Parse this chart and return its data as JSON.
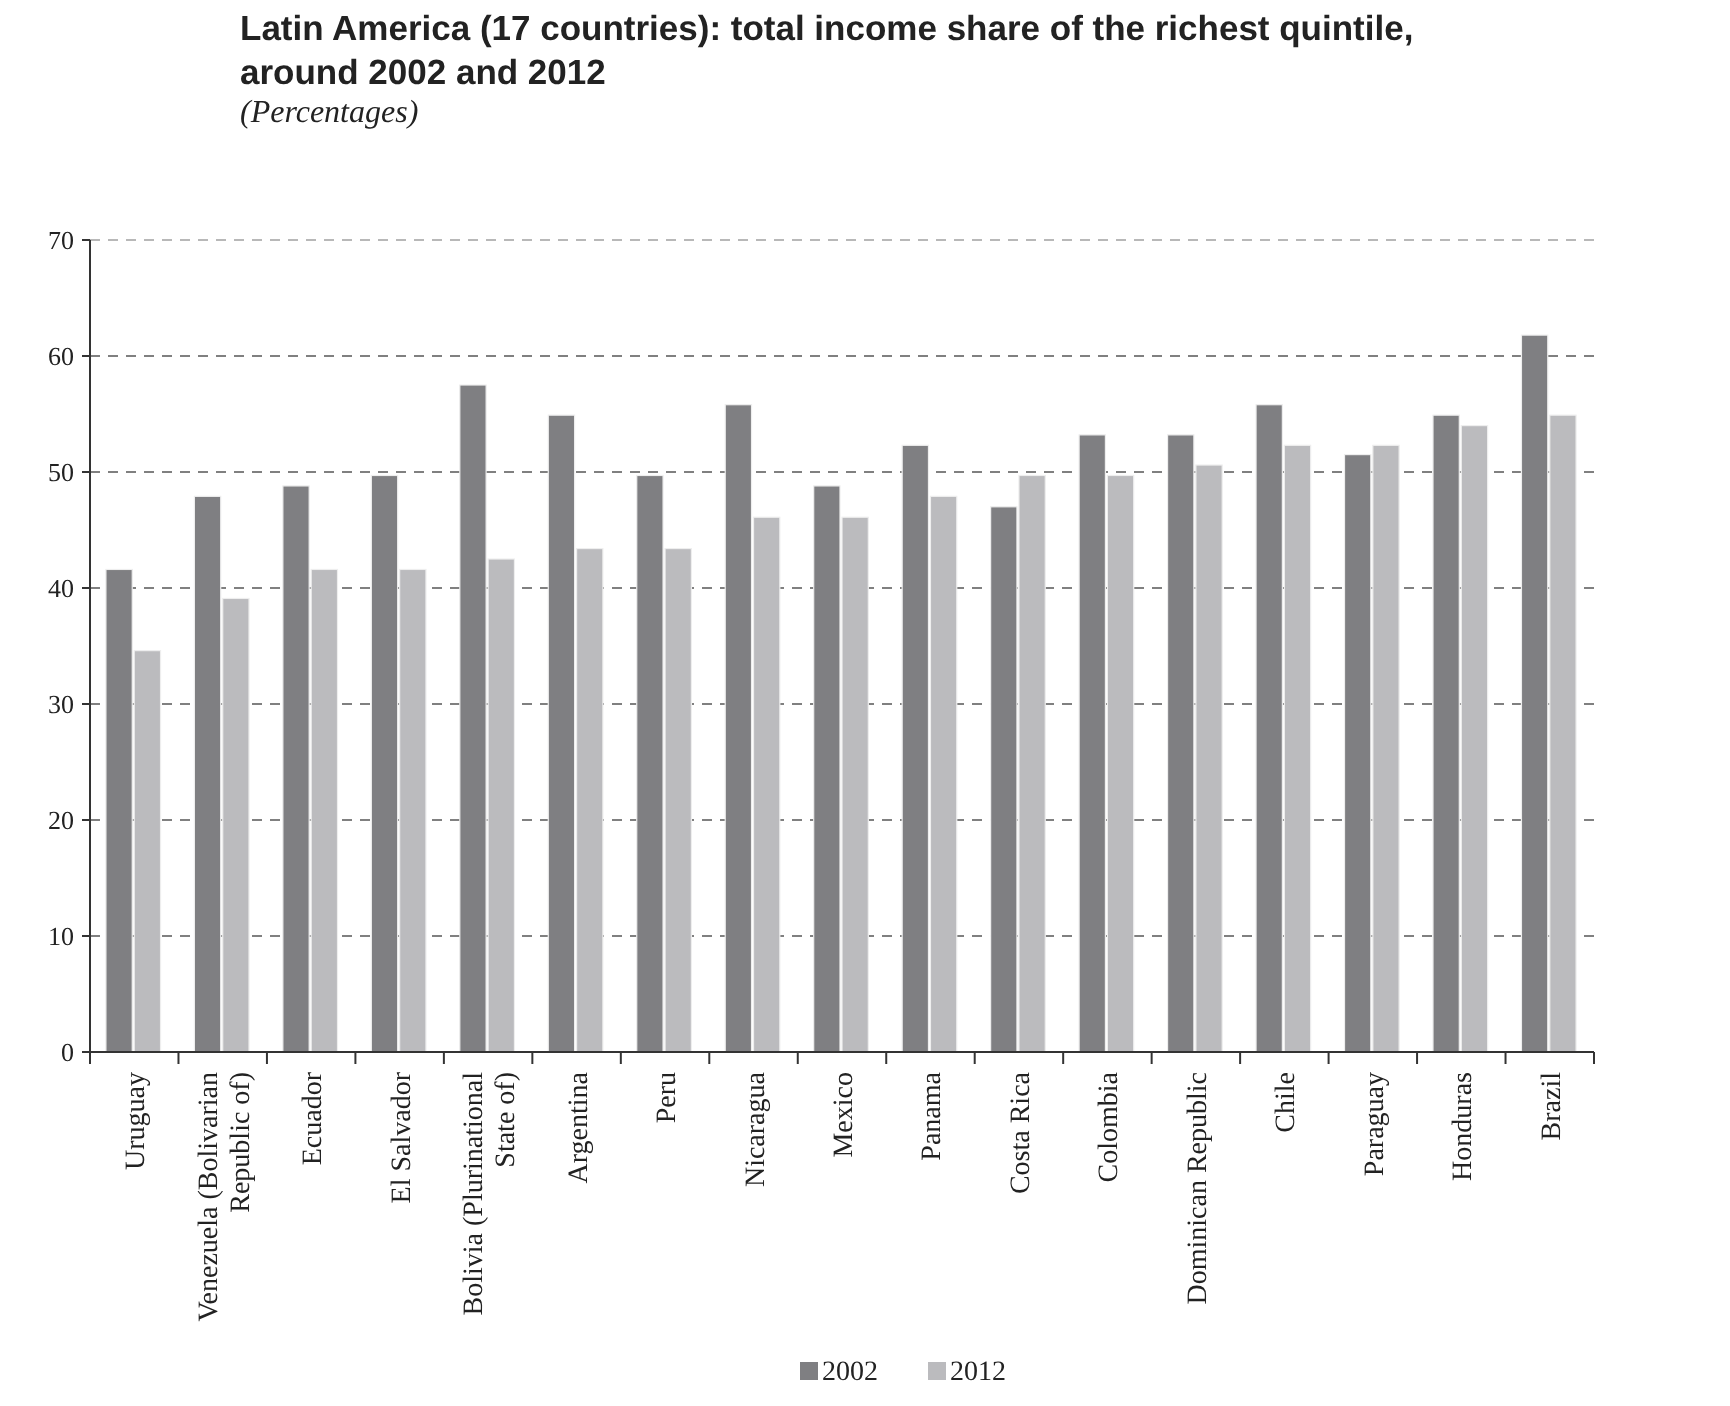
{
  "chart_data": {
    "type": "bar",
    "title": "Latin America (17 countries): total income share of the richest quintile, around 2002 and 2012",
    "subtitle": "(Percentages)",
    "categories": [
      "Uruguay",
      "Venezuela (Bolivarian Republic of)",
      "Ecuador",
      "El Salvador",
      "Bolivia (Plurinational State of)",
      "Argentina",
      "Peru",
      "Nicaragua",
      "Mexico",
      "Panama",
      "Costa Rica",
      "Colombia",
      "Dominican Republic",
      "Chile",
      "Paraguay",
      "Honduras",
      "Brazil"
    ],
    "series": [
      {
        "name": "2002",
        "color": "#7f7f82",
        "values": [
          41.6,
          47.9,
          48.8,
          49.7,
          57.5,
          54.9,
          49.7,
          55.8,
          48.8,
          52.3,
          47.0,
          53.2,
          53.2,
          55.8,
          51.5,
          54.9,
          61.8
        ]
      },
      {
        "name": "2012",
        "color": "#bbbbbe",
        "values": [
          34.6,
          39.1,
          41.6,
          41.6,
          42.5,
          43.4,
          43.4,
          46.1,
          46.1,
          47.9,
          49.7,
          49.7,
          50.6,
          52.3,
          52.3,
          54.0,
          54.9
        ]
      }
    ],
    "ylim": [
      0,
      70
    ],
    "yticks": [
      0,
      10,
      20,
      30,
      40,
      50,
      60,
      70
    ],
    "grid": "y",
    "legend": "bottom"
  }
}
